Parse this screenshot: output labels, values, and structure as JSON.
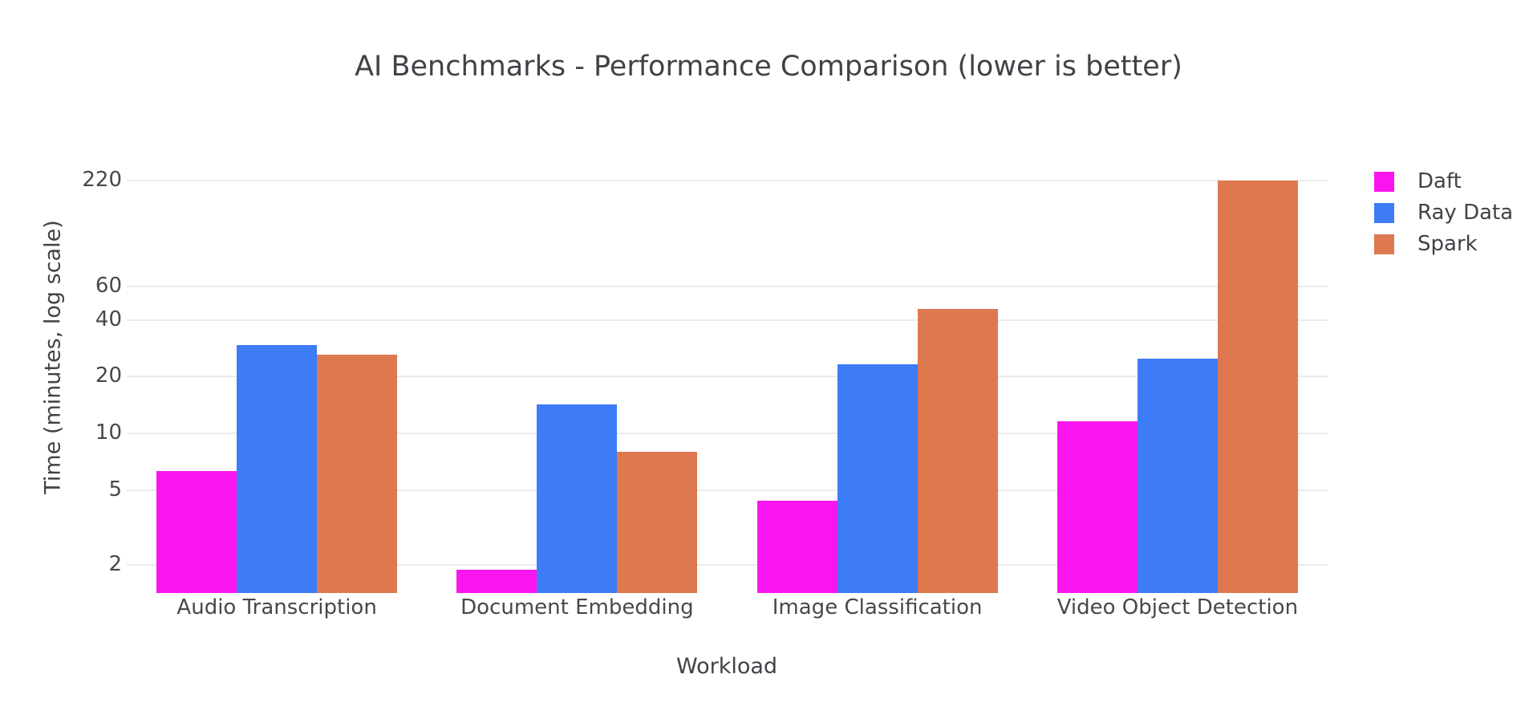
{
  "figure": {
    "title": "AI Benchmarks - Performance Comparison (lower is better)"
  },
  "colors": {
    "daft": "#f916ee",
    "ray_data": "#3e7bf6",
    "spark": "#de794f",
    "grid": "#ebebed",
    "text": "#3f4347"
  },
  "chart_data": {
    "type": "bar",
    "title": "AI Benchmarks - Performance Comparison (lower is better)",
    "xlabel": "Workload",
    "ylabel": "Time (minutes, log scale)",
    "y_scale": "log",
    "y_ticks": [
      2,
      5,
      10,
      20,
      40,
      60,
      220
    ],
    "y_range_approx": [
      1.42,
      460
    ],
    "grid": true,
    "legend_position": "right",
    "categories": [
      "Audio Transcription",
      "Document Embedding",
      "Image Classification",
      "Video Object Detection"
    ],
    "series": [
      {
        "name": "Daft",
        "color": "#f916ee",
        "values": [
          6.3,
          1.9,
          4.4,
          11.6
        ]
      },
      {
        "name": "Ray Data",
        "color": "#3e7bf6",
        "values": [
          29.5,
          14.3,
          23.3,
          24.8
        ]
      },
      {
        "name": "Spark",
        "color": "#de794f",
        "values": [
          26.1,
          8.0,
          45.5,
          219
        ]
      }
    ]
  }
}
